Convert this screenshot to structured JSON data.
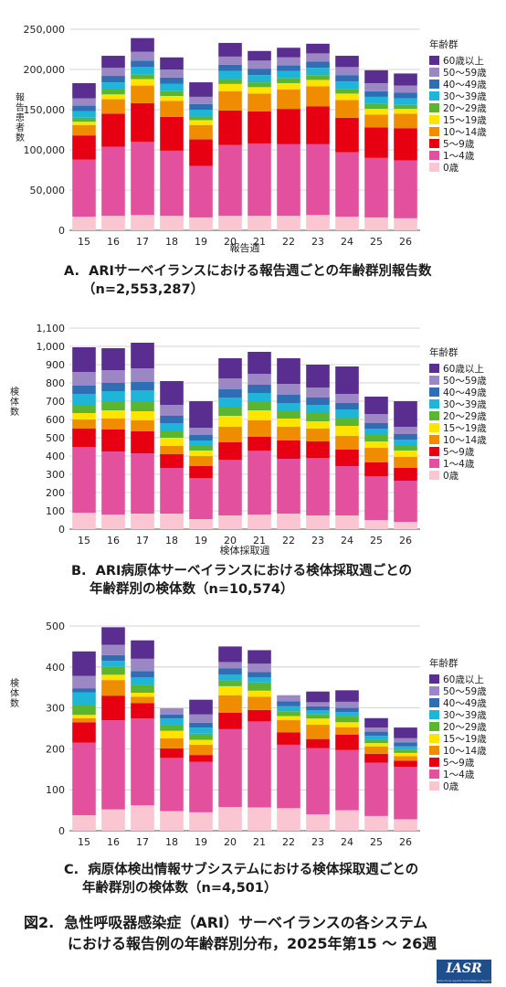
{
  "legend_title": "年齢群",
  "age_groups": [
    "0歳",
    "1～4歳",
    "5～9歳",
    "10～14歳",
    "15～19歳",
    "20～29歳",
    "30～39歳",
    "40～49歳",
    "50～59歳",
    "60歳以上"
  ],
  "colors": [
    "#f9c6d2",
    "#e3519e",
    "#e60012",
    "#f08c00",
    "#ffe400",
    "#5cb531",
    "#1fb5d8",
    "#2f6db5",
    "#9a87c4",
    "#5a2d91"
  ],
  "chart_data": [
    {
      "id": "A",
      "type": "bar",
      "stacked": true,
      "caption_line1": "A.  ARIサーベイランスにおける報告週ごとの年齢群別報告数",
      "caption_line2": "（n=2,553,287）",
      "xlabel": "報告週",
      "ylabel": "報告患者数",
      "ylim": [
        0,
        250000
      ],
      "yticks": [
        0,
        50000,
        100000,
        150000,
        200000,
        250000
      ],
      "ytick_labels": [
        "0",
        "50,000",
        "100,000",
        "150,000",
        "200,000",
        "250,000"
      ],
      "grid": true,
      "legend_position": "right",
      "categories": [
        "15",
        "16",
        "17",
        "18",
        "19",
        "20",
        "21",
        "22",
        "23",
        "24",
        "25",
        "26"
      ],
      "series": [
        {
          "name": "0歳",
          "values": [
            17000,
            18000,
            19000,
            18000,
            16000,
            18000,
            18000,
            18000,
            19000,
            17000,
            16000,
            15000
          ]
        },
        {
          "name": "1～4歳",
          "values": [
            71000,
            86000,
            91000,
            81000,
            64000,
            88000,
            90000,
            89000,
            88000,
            80000,
            74000,
            72000
          ]
        },
        {
          "name": "5～9歳",
          "values": [
            30000,
            41000,
            48000,
            42000,
            33000,
            43000,
            40000,
            44000,
            47000,
            43000,
            38000,
            40000
          ]
        },
        {
          "name": "10～14歳",
          "values": [
            13000,
            18000,
            22000,
            20000,
            18000,
            24000,
            22000,
            24000,
            25000,
            22000,
            16000,
            18000
          ]
        },
        {
          "name": "15～19歳",
          "values": [
            4000,
            6000,
            8000,
            6000,
            6000,
            9000,
            8000,
            8000,
            8000,
            8000,
            7000,
            6000
          ]
        },
        {
          "name": "20～29歳",
          "values": [
            5000,
            6000,
            6000,
            6000,
            5000,
            6000,
            6000,
            6000,
            6000,
            6000,
            6000,
            5000
          ]
        },
        {
          "name": "30～39歳",
          "values": [
            8000,
            9000,
            9000,
            9000,
            8000,
            10000,
            9000,
            9000,
            9000,
            9000,
            9000,
            8000
          ]
        },
        {
          "name": "40～49歳",
          "values": [
            7000,
            8000,
            8000,
            8000,
            7000,
            8000,
            8000,
            7000,
            8000,
            8000,
            7000,
            7000
          ]
        },
        {
          "name": "50～59歳",
          "values": [
            9000,
            10000,
            11000,
            10000,
            9000,
            10000,
            10000,
            10000,
            10000,
            10000,
            10000,
            9000
          ]
        },
        {
          "name": "60歳以上",
          "values": [
            19000,
            15000,
            17000,
            15000,
            18000,
            17000,
            12000,
            12000,
            12000,
            14000,
            16000,
            15000
          ]
        }
      ]
    },
    {
      "id": "B",
      "type": "bar",
      "stacked": true,
      "caption_line1": "B.  ARI病原体サーベイランスにおける検体採取週ごとの",
      "caption_line2": "年齢群別の検体数（n=10,574）",
      "xlabel": "検体採取週",
      "ylabel": "検体数",
      "ylim": [
        0,
        1100
      ],
      "yticks": [
        0,
        100,
        200,
        300,
        400,
        500,
        600,
        700,
        800,
        900,
        1000,
        1100
      ],
      "ytick_labels": [
        "0",
        "100",
        "200",
        "300",
        "400",
        "500",
        "600",
        "700",
        "800",
        "900",
        "1,000",
        "1,100"
      ],
      "grid": true,
      "legend_position": "right",
      "categories": [
        "15",
        "16",
        "17",
        "18",
        "19",
        "20",
        "21",
        "22",
        "23",
        "24",
        "25",
        "26"
      ],
      "series": [
        {
          "name": "0歳",
          "values": [
            90,
            80,
            85,
            85,
            55,
            75,
            80,
            85,
            75,
            75,
            50,
            40
          ]
        },
        {
          "name": "1～4歳",
          "values": [
            360,
            345,
            330,
            250,
            225,
            305,
            350,
            300,
            315,
            270,
            240,
            225
          ]
        },
        {
          "name": "5～9歳",
          "values": [
            100,
            120,
            120,
            75,
            65,
            95,
            75,
            100,
            90,
            90,
            75,
            70
          ]
        },
        {
          "name": "10～14歳",
          "values": [
            50,
            60,
            60,
            45,
            55,
            85,
            90,
            75,
            70,
            75,
            80,
            60
          ]
        },
        {
          "name": "15～19歳",
          "values": [
            35,
            45,
            50,
            45,
            30,
            60,
            55,
            45,
            40,
            55,
            35,
            35
          ]
        },
        {
          "name": "20～29歳",
          "values": [
            45,
            50,
            55,
            40,
            25,
            50,
            45,
            40,
            50,
            40,
            35,
            30
          ]
        },
        {
          "name": "30～39歳",
          "values": [
            60,
            55,
            60,
            40,
            30,
            50,
            50,
            45,
            40,
            50,
            35,
            30
          ]
        },
        {
          "name": "40～49歳",
          "values": [
            45,
            45,
            45,
            40,
            30,
            45,
            45,
            45,
            40,
            35,
            30,
            30
          ]
        },
        {
          "name": "50～59歳",
          "values": [
            75,
            70,
            75,
            60,
            40,
            60,
            60,
            60,
            55,
            50,
            50,
            40
          ]
        },
        {
          "name": "60歳以上",
          "values": [
            135,
            120,
            140,
            130,
            145,
            110,
            120,
            140,
            125,
            150,
            95,
            140
          ]
        }
      ]
    },
    {
      "id": "C",
      "type": "bar",
      "stacked": true,
      "caption_line1": "C.  病原体検出情報サブシステムにおける検体採取週ごとの",
      "caption_line2": "年齢群別の検体数（n=4,501）",
      "xlabel": "",
      "ylabel": "検体数",
      "ylim": [
        0,
        500
      ],
      "yticks": [
        0,
        100,
        200,
        300,
        400,
        500
      ],
      "ytick_labels": [
        "0",
        "100",
        "200",
        "300",
        "400",
        "500"
      ],
      "grid": true,
      "legend_position": "right",
      "categories": [
        "15",
        "16",
        "17",
        "18",
        "19",
        "20",
        "21",
        "22",
        "23",
        "24",
        "25",
        "26"
      ],
      "series": [
        {
          "name": "0歳",
          "values": [
            38,
            52,
            62,
            48,
            45,
            58,
            57,
            55,
            40,
            50,
            36,
            28
          ]
        },
        {
          "name": "1～4歳",
          "values": [
            177,
            218,
            212,
            130,
            123,
            190,
            210,
            155,
            162,
            147,
            130,
            128
          ]
        },
        {
          "name": "5～9歳",
          "values": [
            50,
            60,
            38,
            23,
            17,
            40,
            28,
            30,
            22,
            38,
            22,
            15
          ]
        },
        {
          "name": "10～14歳",
          "values": [
            10,
            38,
            15,
            25,
            25,
            43,
            32,
            30,
            35,
            18,
            18,
            11
          ]
        },
        {
          "name": "15～19歳",
          "values": [
            8,
            13,
            10,
            18,
            12,
            22,
            15,
            10,
            15,
            12,
            8,
            8
          ]
        },
        {
          "name": "20～29歳",
          "values": [
            25,
            20,
            20,
            15,
            15,
            14,
            20,
            12,
            10,
            15,
            8,
            8
          ]
        },
        {
          "name": "30～39歳",
          "values": [
            30,
            14,
            18,
            15,
            15,
            14,
            13,
            12,
            10,
            10,
            10,
            8
          ]
        },
        {
          "name": "40～49歳",
          "values": [
            10,
            14,
            15,
            10,
            12,
            16,
            13,
            12,
            10,
            10,
            10,
            10
          ]
        },
        {
          "name": "50～59歳",
          "values": [
            30,
            25,
            30,
            15,
            20,
            15,
            20,
            15,
            10,
            15,
            10,
            10
          ]
        },
        {
          "name": "60歳以上",
          "values": [
            60,
            43,
            45,
            0,
            36,
            38,
            33,
            0,
            26,
            28,
            23,
            26
          ]
        }
      ]
    }
  ],
  "figure_title_line1": "図2.  急性呼吸器感染症（ARI）サーベイランスの各システム",
  "figure_title_line2": "における報告例の年齢群別分布，2025年第15 ～ 26週",
  "logo_text": "IASR",
  "logo_subtext": "Infectious Agents Surveillance Report"
}
